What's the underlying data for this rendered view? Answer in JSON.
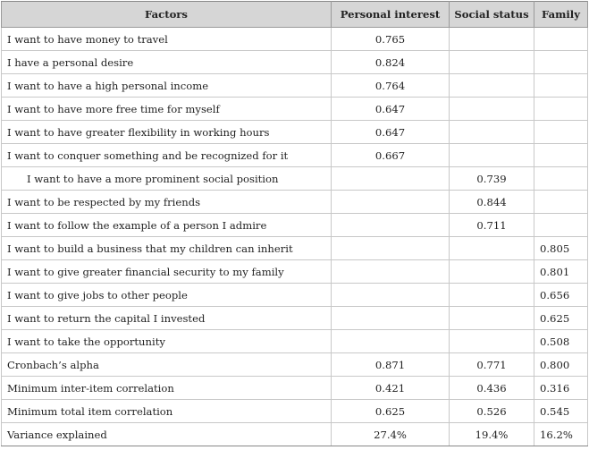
{
  "table": {
    "header": [
      "Factors",
      "Personal interest",
      "Social status",
      "Family"
    ],
    "rows": [
      [
        "I want to have money to travel",
        "0.765",
        null,
        null
      ],
      [
        "I have a personal desire",
        "0.824",
        null,
        null
      ],
      [
        "I want to have a high personal income",
        "0.764",
        null,
        null
      ],
      [
        "I want to have more free time for myself",
        "0.647",
        null,
        null
      ],
      [
        "I want to have greater flexibility in working hours",
        "0.647",
        null,
        null
      ],
      [
        "I want to conquer something and be recognized for it",
        "0.667",
        null,
        null
      ],
      [
        "I want to have a more prominent social position",
        null,
        "0.739",
        null
      ],
      [
        "I want to be respected by my friends",
        null,
        "0.844",
        null
      ],
      [
        "I want to follow the example of a person I admire",
        null,
        "0.711",
        null
      ],
      [
        "I want to build a business that my children can inherit",
        null,
        null,
        "0.805"
      ],
      [
        "I want to give greater financial security to my family",
        null,
        null,
        "0.801"
      ],
      [
        "I want to give jobs to other people",
        null,
        null,
        "0.656"
      ],
      [
        "I want to return the capital I invested",
        null,
        null,
        "0.625"
      ],
      [
        "I want to take the opportunity",
        null,
        null,
        "0.508"
      ],
      [
        "Cronbach’s alpha",
        "0.871",
        "0.771",
        "0.800"
      ],
      [
        "Minimum inter-item correlation",
        "0.421",
        "0.436",
        "0.316"
      ],
      [
        "Minimum total item correlation",
        "0.625",
        "0.526",
        "0.545"
      ],
      [
        "Variance explained",
        "27.4%",
        "19.4%",
        "16.2%"
      ]
    ]
  }
}
